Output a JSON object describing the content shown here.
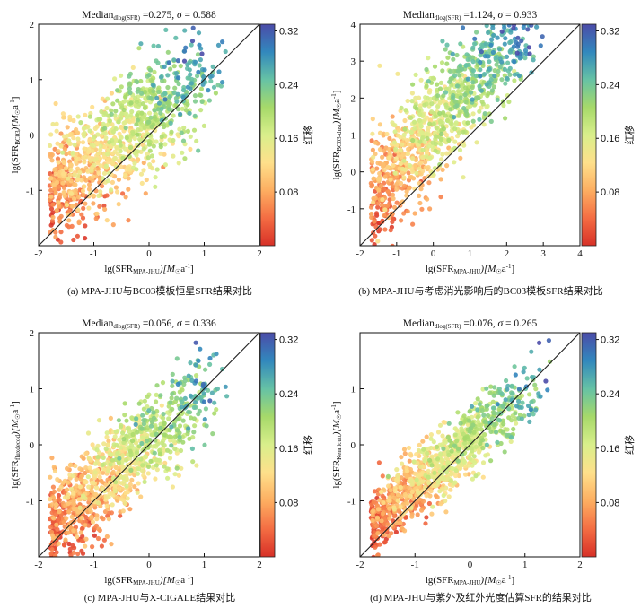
{
  "colorbar": {
    "label": "红移",
    "ticks": [
      "0.32",
      "0.24",
      "0.16",
      "0.08"
    ],
    "tick_values": [
      0.32,
      0.24,
      0.16,
      0.08
    ],
    "range": [
      0.0,
      0.33
    ],
    "colors": [
      "#d73027",
      "#f46d43",
      "#fdae61",
      "#fee08b",
      "#d9ef8b",
      "#a6d96a",
      "#66c2a5",
      "#3288bd",
      "#4b4ba8"
    ]
  },
  "chart_data": [
    {
      "type": "scatter",
      "caption": "(a) MPA-JHU与BC03模板恒星SFR结果对比",
      "title": {
        "prefix": "Median",
        "sub": "dlog(SFR)",
        "value": " =0.275,",
        "sigma_label": "σ",
        "sigma_value": " = 0.588"
      },
      "xlabel": {
        "pre": "lg(SFR",
        "sub": "MPA-JHU",
        "post": ")[M",
        "sun": "☉",
        "unit": "a",
        "exp": "-1",
        "end": "]"
      },
      "ylabel": {
        "pre": "lg(SFR",
        "sub": "BC03",
        "post": ")[M",
        "sun": "☉",
        "unit": "a",
        "exp": "-1",
        "end": "]"
      },
      "xlim": [
        -2,
        2
      ],
      "ylim": [
        -2,
        2
      ],
      "xticks": [
        "-2",
        "-1",
        "0",
        "1",
        "2"
      ],
      "xtick_values": [
        -2,
        -1,
        0,
        1,
        2
      ],
      "yticks": [
        "2",
        "1",
        "0",
        "-1"
      ],
      "ytick_values": [
        2,
        1,
        0,
        -1
      ],
      "one_to_one_line": true,
      "cloud": {
        "slope": 0.72,
        "offset": 0.3,
        "scatter": 0.5,
        "points": 1100
      }
    },
    {
      "type": "scatter",
      "caption": "(b) MPA-JHU与考虑消光影响后的BC03模板SFR结果对比",
      "title": {
        "prefix": "Median",
        "sub": "dlog(SFR)",
        "value": " =1.124,",
        "sigma_label": "σ",
        "sigma_value": " = 0.933"
      },
      "xlabel": {
        "pre": "lg(SFR",
        "sub": "MPA-JHU",
        "post": ")[M",
        "sun": "☉",
        "unit": "a",
        "exp": "-1",
        "end": "]"
      },
      "ylabel": {
        "pre": "lg(SFR",
        "sub": "BC03-dust",
        "post": ")[M",
        "sun": "☉",
        "unit": "a",
        "exp": "-1",
        "end": "]"
      },
      "xlim": [
        -2,
        4
      ],
      "ylim": [
        -2,
        4
      ],
      "xticks": [
        "-2",
        "-1",
        "0",
        "1",
        "2",
        "3",
        "4"
      ],
      "xtick_values": [
        -2,
        -1,
        0,
        1,
        2,
        3,
        4
      ],
      "yticks": [
        "4",
        "3",
        "2",
        "1",
        "0",
        "-1"
      ],
      "ytick_values": [
        4,
        3,
        2,
        1,
        0,
        -1
      ],
      "one_to_one_line": true,
      "cloud": {
        "slope": 1.05,
        "offset": 1.2,
        "scatter": 0.75,
        "points": 1100
      }
    },
    {
      "type": "scatter",
      "caption": "(c) MPA-JHU与X-CIGALE结果对比",
      "title": {
        "prefix": "Median",
        "sub": "dlog(SFR)",
        "value": " =0.056,",
        "sigma_label": "σ",
        "sigma_value": " = 0.336"
      },
      "xlabel": {
        "pre": "lg(SFR",
        "sub": "MPA-JHU",
        "post": ")[M",
        "sun": "☉",
        "unit": "a",
        "exp": "-1",
        "end": "]"
      },
      "ylabel": {
        "pre": "lg(SFR",
        "sub": "fluxdecod",
        "post": ")[M",
        "sun": "☉",
        "unit": "a",
        "exp": "-1",
        "end": "]"
      },
      "xlim": [
        -2,
        2
      ],
      "ylim": [
        -2,
        2
      ],
      "xticks": [
        "-2",
        "-1",
        "0",
        "1",
        "2"
      ],
      "xtick_values": [
        -2,
        -1,
        0,
        1,
        2
      ],
      "yticks": [
        "2",
        "1",
        "0",
        "-1"
      ],
      "ytick_values": [
        2,
        1,
        0,
        -1
      ],
      "one_to_one_line": true,
      "cloud": {
        "slope": 0.85,
        "offset": 0.06,
        "scatter": 0.42,
        "points": 1100
      }
    },
    {
      "type": "scatter",
      "caption": "(d) MPA-JHU与紫外及红外光度估算SFR的结果对比",
      "title": {
        "prefix": "Median",
        "sub": "dlog(SFR)",
        "value": " =0.076,",
        "sigma_label": "σ",
        "sigma_value": " = 0.265"
      },
      "xlabel": {
        "pre": "lg(SFR",
        "sub": "MPA-JHU",
        "post": ")[M",
        "sun": "☉",
        "unit": "a",
        "exp": "-1",
        "end": "]"
      },
      "ylabel": {
        "pre": "lg(SFR",
        "sub": "Kennicutt",
        "post": ")[M",
        "sun": "☉",
        "unit": "a",
        "exp": "-1",
        "end": "]"
      },
      "xlim": [
        -2,
        2
      ],
      "ylim": [
        -2,
        2
      ],
      "xticks": [
        "-2",
        "-1",
        "0",
        "1",
        "2"
      ],
      "xtick_values": [
        -2,
        -1,
        0,
        1,
        2
      ],
      "yticks": [
        "1",
        "0",
        "-1"
      ],
      "ytick_values": [
        1,
        0,
        -1
      ],
      "one_to_one_line": true,
      "cloud": {
        "slope": 0.82,
        "offset": 0.08,
        "scatter": 0.3,
        "points": 1100
      }
    }
  ]
}
